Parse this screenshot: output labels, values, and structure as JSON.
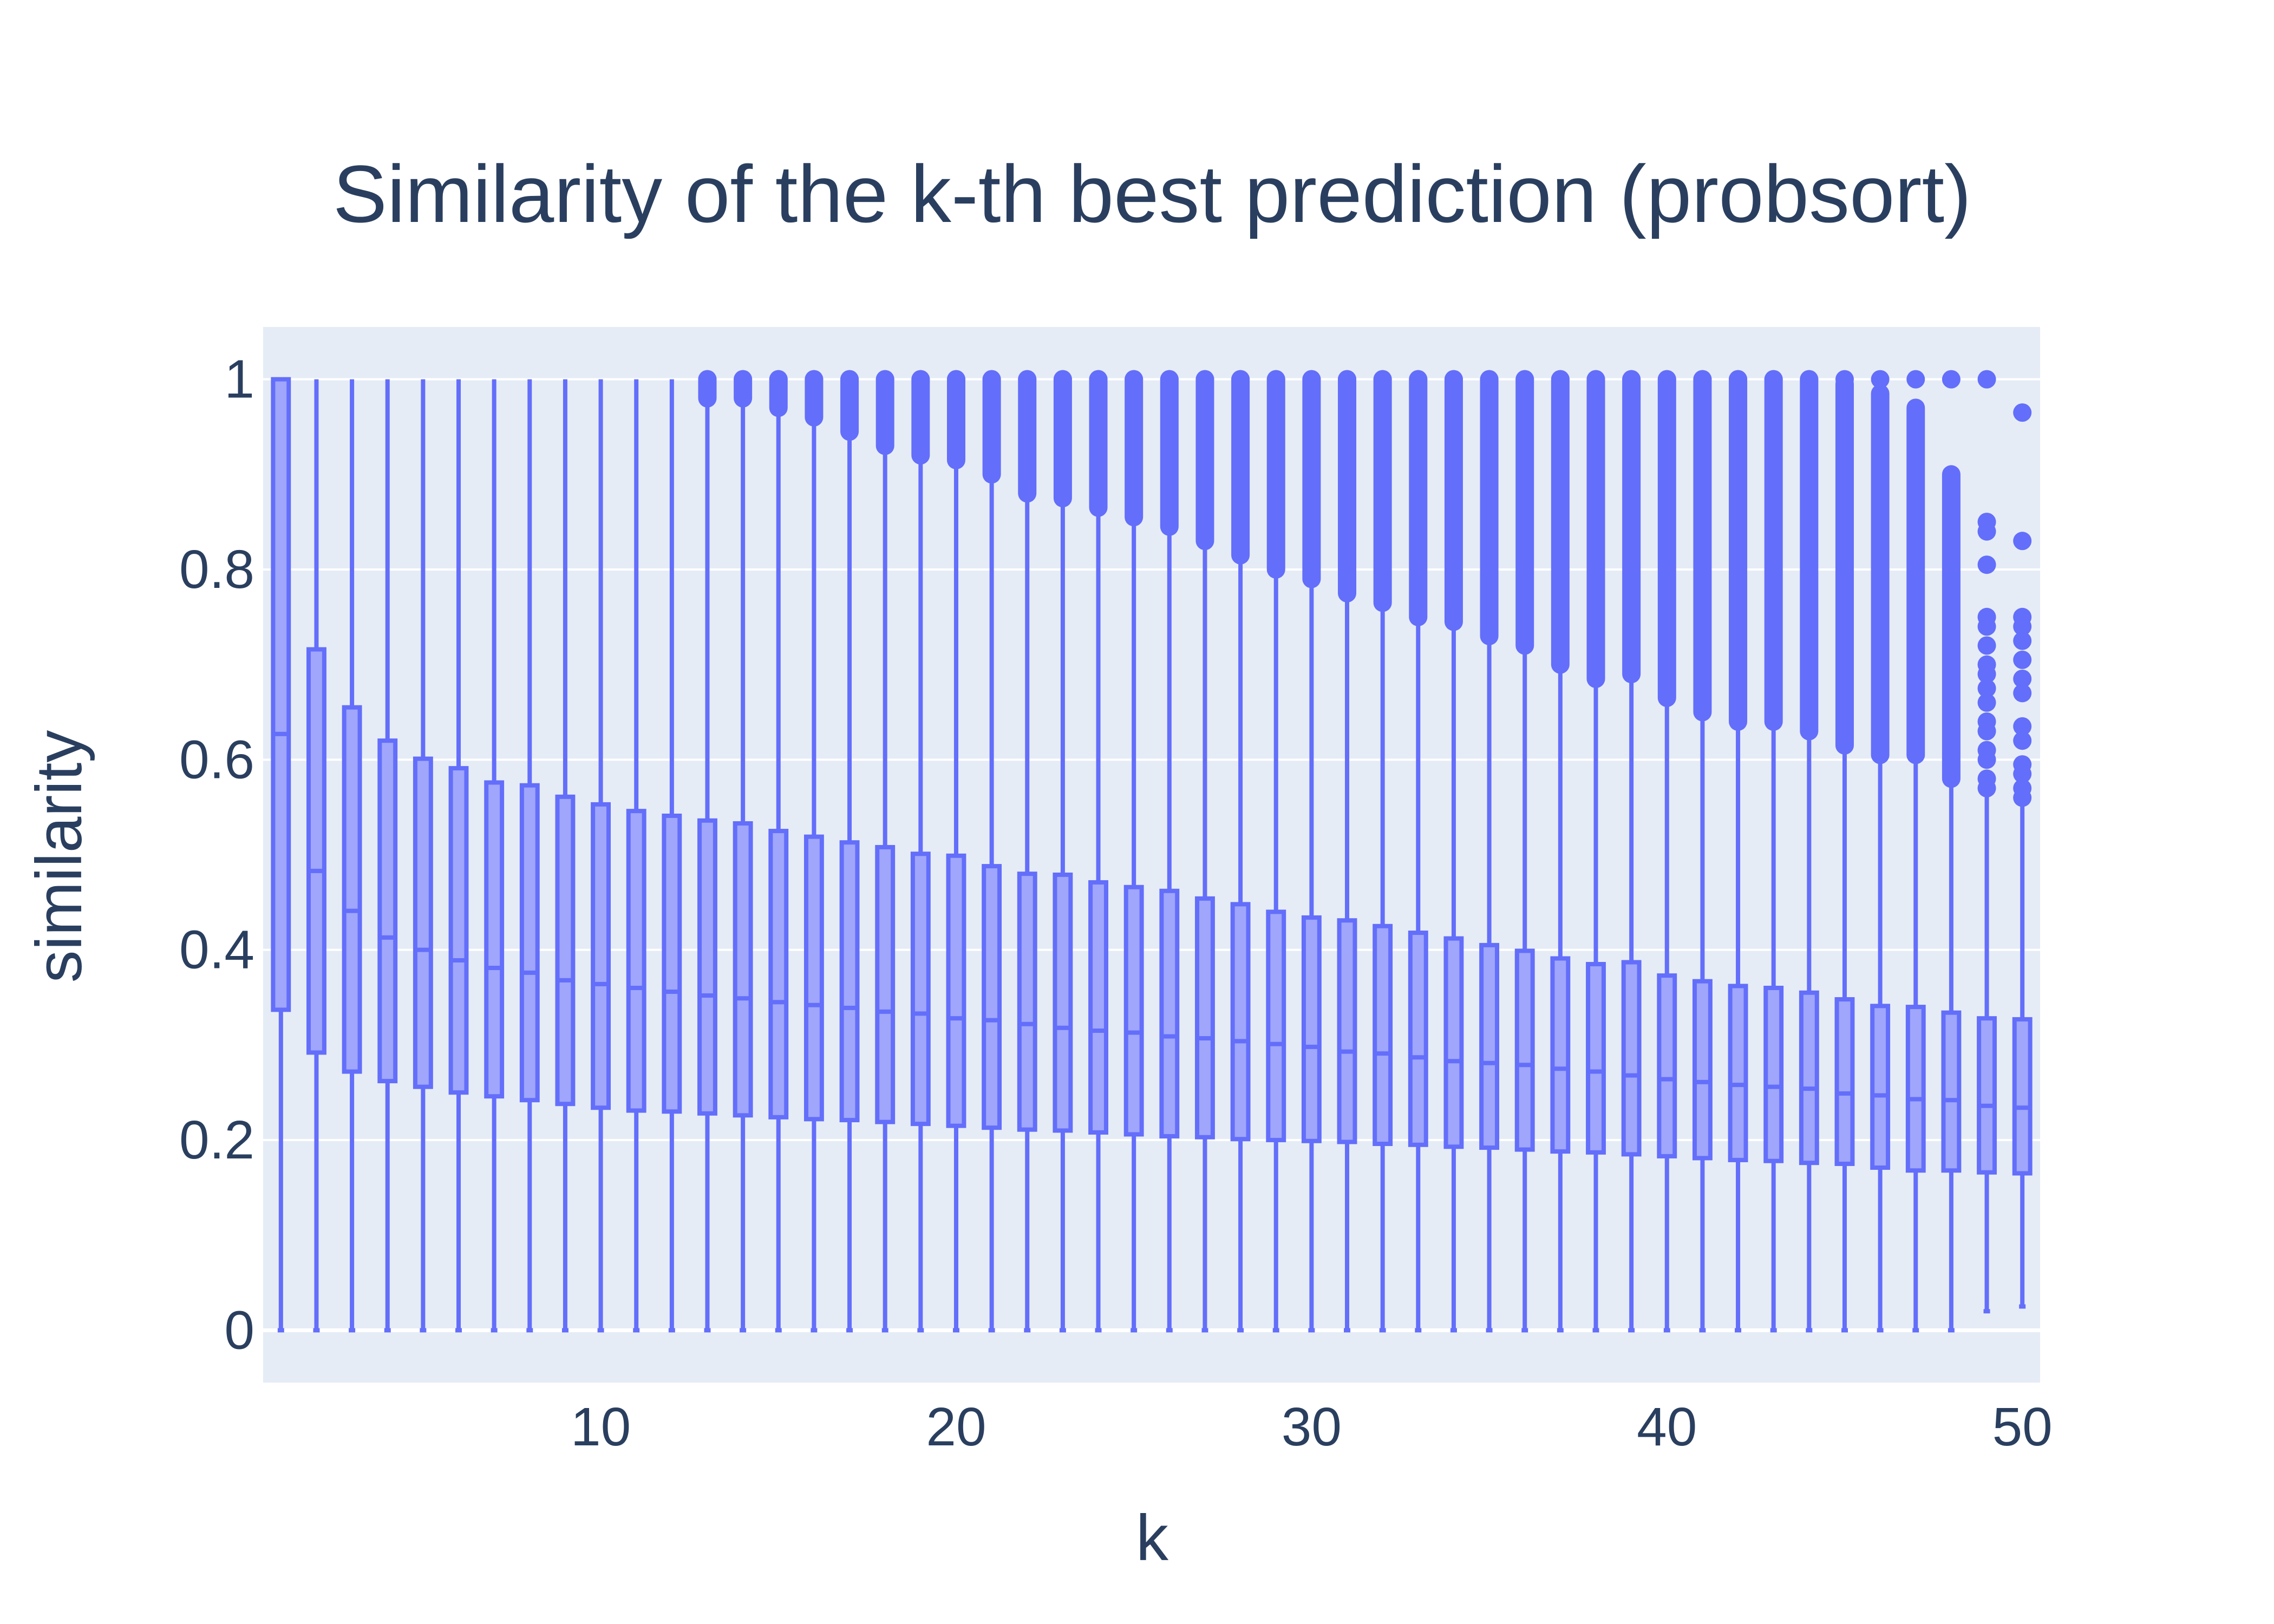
{
  "chart_data": {
    "type": "box",
    "title": "Similarity of the k-th best prediction (probsort)",
    "xlabel": "k",
    "ylabel": "similarity",
    "xlim": [
      0.5,
      50.5
    ],
    "ylim": [
      -0.055,
      1.055
    ],
    "x_ticks": [
      10,
      20,
      30,
      40,
      50
    ],
    "x_tick_labels": [
      "10",
      "20",
      "30",
      "40",
      "50"
    ],
    "y_ticks": [
      0,
      0.2,
      0.4,
      0.6,
      0.8,
      1
    ],
    "y_tick_labels": [
      "0",
      "0.2",
      "0.4",
      "0.6",
      "0.8",
      "1"
    ],
    "grid": true,
    "legend": "none",
    "colors": {
      "plot_bg": "#e5ecf6",
      "grid": "#ffffff",
      "box_line": "#636efa",
      "box_fill": "#9fa6fc",
      "text": "#2a3f5f"
    },
    "series": [
      {
        "k": [
          1,
          2,
          3,
          4,
          5,
          6,
          7,
          8,
          9,
          10,
          11,
          12,
          13,
          14,
          15,
          16,
          17,
          18,
          19,
          20,
          21,
          22,
          23,
          24,
          25,
          26,
          27,
          28,
          29,
          30,
          31,
          32,
          33,
          34,
          35,
          36,
          37,
          38,
          39,
          40,
          41,
          42,
          43,
          44,
          45,
          46,
          47,
          48,
          49,
          50
        ],
        "q1": [
          0.337,
          0.292,
          0.272,
          0.262,
          0.256,
          0.25,
          0.246,
          0.242,
          0.238,
          0.234,
          0.231,
          0.23,
          0.228,
          0.226,
          0.224,
          0.222,
          0.221,
          0.219,
          0.217,
          0.215,
          0.213,
          0.211,
          0.21,
          0.208,
          0.206,
          0.204,
          0.203,
          0.201,
          0.2,
          0.199,
          0.198,
          0.196,
          0.195,
          0.193,
          0.192,
          0.19,
          0.188,
          0.187,
          0.185,
          0.183,
          0.181,
          0.179,
          0.178,
          0.176,
          0.175,
          0.171,
          0.168,
          0.168,
          0.166,
          0.165
        ],
        "median": [
          0.627,
          0.483,
          0.441,
          0.413,
          0.4,
          0.389,
          0.381,
          0.376,
          0.368,
          0.364,
          0.36,
          0.356,
          0.352,
          0.349,
          0.345,
          0.342,
          0.339,
          0.335,
          0.333,
          0.328,
          0.326,
          0.322,
          0.318,
          0.315,
          0.313,
          0.309,
          0.307,
          0.304,
          0.301,
          0.298,
          0.293,
          0.291,
          0.287,
          0.283,
          0.281,
          0.279,
          0.275,
          0.272,
          0.268,
          0.264,
          0.261,
          0.258,
          0.256,
          0.254,
          0.249,
          0.247,
          0.243,
          0.242,
          0.236,
          0.234
        ],
        "q3": [
          1.0,
          0.716,
          0.655,
          0.62,
          0.601,
          0.591,
          0.576,
          0.573,
          0.561,
          0.553,
          0.546,
          0.541,
          0.536,
          0.533,
          0.525,
          0.519,
          0.513,
          0.508,
          0.501,
          0.499,
          0.488,
          0.48,
          0.479,
          0.471,
          0.466,
          0.462,
          0.454,
          0.448,
          0.44,
          0.434,
          0.431,
          0.425,
          0.418,
          0.412,
          0.405,
          0.399,
          0.391,
          0.385,
          0.387,
          0.373,
          0.367,
          0.362,
          0.36,
          0.355,
          0.348,
          0.341,
          0.34,
          0.334,
          0.328,
          0.327
        ],
        "lower_fence": [
          0,
          0,
          0,
          0,
          0,
          0,
          0,
          0,
          0,
          0,
          0,
          0,
          0,
          0,
          0,
          0,
          0,
          0,
          0,
          0,
          0,
          0,
          0,
          0,
          0,
          0,
          0,
          0,
          0,
          0,
          0,
          0,
          0,
          0,
          0,
          0,
          0,
          0,
          0,
          0,
          0,
          0,
          0,
          0,
          0,
          0,
          0,
          0,
          0.02,
          0.025
        ],
        "upper_fence": [
          1.0,
          1.0,
          1.0,
          1.0,
          1.0,
          1.0,
          1.0,
          1.0,
          1.0,
          1.0,
          1.0,
          1.0,
          0.98,
          0.98,
          0.97,
          0.96,
          0.945,
          0.93,
          0.92,
          0.915,
          0.9,
          0.88,
          0.875,
          0.865,
          0.855,
          0.845,
          0.83,
          0.815,
          0.8,
          0.79,
          0.775,
          0.765,
          0.75,
          0.745,
          0.73,
          0.72,
          0.7,
          0.685,
          0.69,
          0.665,
          0.65,
          0.64,
          0.64,
          0.63,
          0.615,
          0.605,
          0.605,
          0.58,
          0.57,
          0.56
        ],
        "outlier_ranges": [
          null,
          null,
          null,
          null,
          null,
          null,
          null,
          null,
          null,
          null,
          null,
          null,
          [
            0.98,
            1.0
          ],
          [
            0.98,
            1.0
          ],
          [
            0.97,
            1.0
          ],
          [
            0.96,
            1.0
          ],
          [
            0.945,
            1.0
          ],
          [
            0.93,
            1.0
          ],
          [
            0.92,
            1.0
          ],
          [
            0.915,
            1.0
          ],
          [
            0.9,
            1.0
          ],
          [
            0.88,
            1.0
          ],
          [
            0.875,
            1.0
          ],
          [
            0.865,
            1.0
          ],
          [
            0.855,
            1.0
          ],
          [
            0.845,
            1.0
          ],
          [
            0.83,
            1.0
          ],
          [
            0.815,
            1.0
          ],
          [
            0.8,
            1.0
          ],
          [
            0.79,
            1.0
          ],
          [
            0.775,
            1.0
          ],
          [
            0.765,
            1.0
          ],
          [
            0.75,
            1.0
          ],
          [
            0.745,
            1.0
          ],
          [
            0.73,
            1.0
          ],
          [
            0.72,
            1.0
          ],
          [
            0.7,
            1.0
          ],
          [
            0.685,
            1.0
          ],
          [
            0.69,
            1.0
          ],
          [
            0.665,
            1.0
          ],
          [
            0.65,
            1.0
          ],
          [
            0.64,
            1.0
          ],
          [
            0.64,
            1.0
          ],
          [
            0.63,
            1.0
          ],
          [
            0.615,
            0.995
          ],
          [
            0.605,
            0.985
          ],
          [
            0.605,
            0.97
          ],
          [
            0.58,
            0.9
          ],
          null,
          null
        ],
        "outlier_points": [
          [],
          [],
          [],
          [],
          [],
          [],
          [],
          [],
          [],
          [],
          [],
          [],
          [
            1.0
          ],
          [
            1.0
          ],
          [
            1.0
          ],
          [
            1.0
          ],
          [
            1.0
          ],
          [
            1.0
          ],
          [
            1.0
          ],
          [
            1.0
          ],
          [
            1.0
          ],
          [
            1.0
          ],
          [
            1.0
          ],
          [
            1.0
          ],
          [
            1.0
          ],
          [
            1.0
          ],
          [
            1.0
          ],
          [
            1.0
          ],
          [
            1.0
          ],
          [
            1.0
          ],
          [
            1.0
          ],
          [
            1.0
          ],
          [
            1.0
          ],
          [
            1.0
          ],
          [
            1.0
          ],
          [
            1.0
          ],
          [
            1.0
          ],
          [
            1.0
          ],
          [
            1.0
          ],
          [
            1.0
          ],
          [
            1.0
          ],
          [
            1.0
          ],
          [
            1.0
          ],
          [
            1.0
          ],
          [
            1.0
          ],
          [
            1.0
          ],
          [
            1.0
          ],
          [
            1.0
          ],
          [
            1.0,
            0.85,
            0.84,
            0.805,
            0.75,
            0.74,
            0.72,
            0.7,
            0.69,
            0.675,
            0.66,
            0.64,
            0.63,
            0.61,
            0.6,
            0.58,
            0.57
          ],
          [
            0.965,
            0.83,
            0.75,
            0.74,
            0.725,
            0.705,
            0.685,
            0.67,
            0.635,
            0.62,
            0.595,
            0.585,
            0.57,
            0.56
          ]
        ]
      }
    ]
  }
}
